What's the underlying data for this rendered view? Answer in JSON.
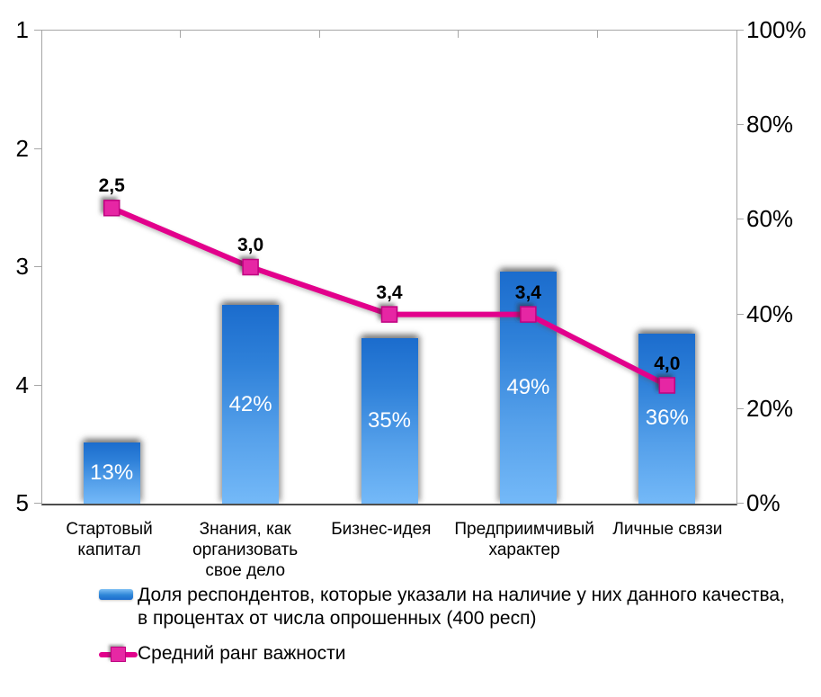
{
  "chart_data": {
    "type": "combo-bar-line",
    "categories": [
      "Стартовый капитал",
      "Знания, как организовать свое дело",
      "Бизнес-идея",
      "Предприимчивый характер",
      "Личные связи"
    ],
    "series": [
      {
        "name": "Доля респондентов, которые указали на наличие у них данного качества, в процентах от числа опрошенных (400 респ)",
        "type": "bar",
        "axis": "right",
        "values": [
          13,
          42,
          35,
          49,
          36
        ],
        "labels": [
          "13%",
          "42%",
          "35%",
          "49%",
          "36%"
        ]
      },
      {
        "name": "Средний ранг важности",
        "type": "line",
        "axis": "left",
        "values": [
          2.5,
          3.0,
          3.4,
          3.4,
          4.0
        ],
        "labels": [
          "2,5",
          "3,0",
          "3,4",
          "3,4",
          "4,0"
        ]
      }
    ],
    "left_axis": {
      "min": 1,
      "max": 5,
      "inverted": true,
      "tick_labels": [
        "1",
        "2",
        "3",
        "4",
        "5"
      ],
      "tick_values": [
        1,
        2,
        3,
        4,
        5
      ]
    },
    "right_axis": {
      "min": 0,
      "max": 100,
      "tick_labels": [
        "100%",
        "80%",
        "60%",
        "40%",
        "20%",
        "0%"
      ],
      "tick_values": [
        100,
        80,
        60,
        40,
        20,
        0
      ]
    },
    "grid": false,
    "legend_position": "bottom",
    "colors": {
      "bar_top": "#1b6ccd",
      "bar_bottom": "#74b9f8",
      "line": "#e2008c",
      "marker_fill": "#e628a4",
      "marker_border": "#bf0080",
      "axis_line": "#a6a6a6",
      "baseline": "#4d4d4d",
      "bar_label_text": "#ffffff",
      "point_label_text": "#000000"
    }
  }
}
